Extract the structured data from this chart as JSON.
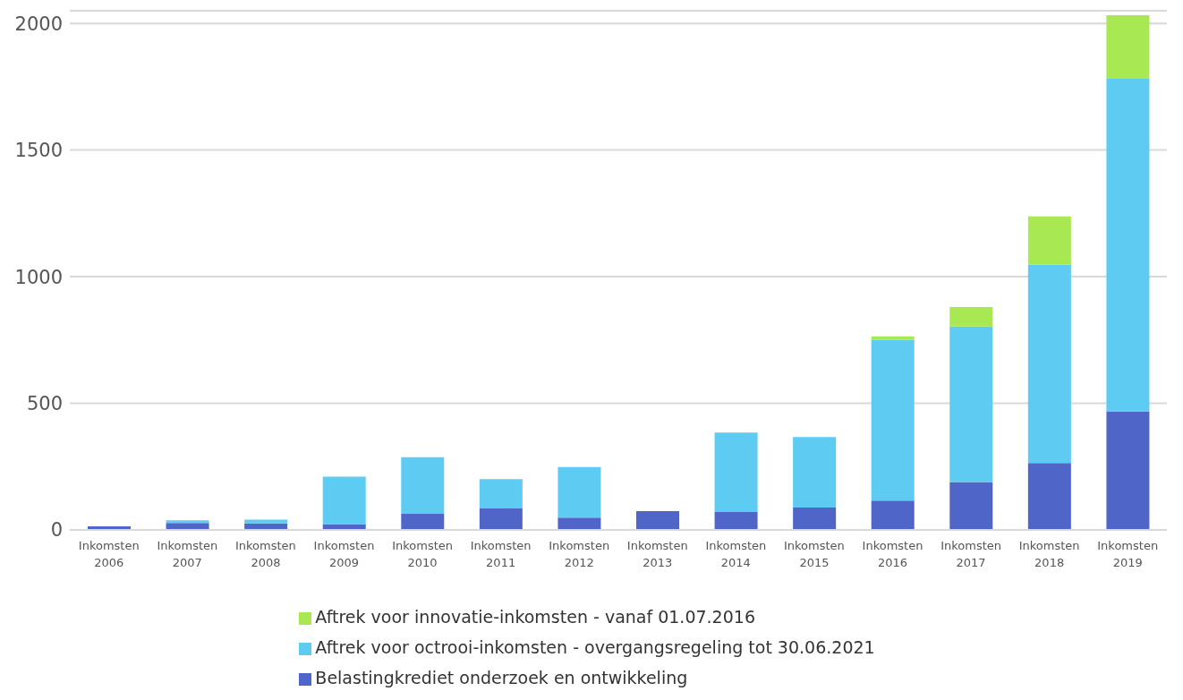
{
  "chart_data": {
    "type": "bar",
    "stacked": true,
    "categories": [
      "Inkomsten 2006",
      "Inkomsten 2007",
      "Inkomsten 2008",
      "Inkomsten 2009",
      "Inkomsten 2010",
      "Inkomsten 2011",
      "Inkomsten 2012",
      "Inkomsten 2013",
      "Inkomsten 2014",
      "Inkomsten 2015",
      "Inkomsten 2016",
      "Inkomsten 2017",
      "Inkomsten 2018",
      "Inkomsten 2019"
    ],
    "series": [
      {
        "name": "Belastingkrediet onderzoek en ontwikkeling",
        "color": "#4f66c8",
        "values": [
          14,
          27,
          26,
          23,
          64,
          85,
          49,
          74,
          71,
          88,
          116,
          189,
          264,
          468
        ]
      },
      {
        "name": "Aftrek voor octrooi-inkomsten - overgangsregeling tot 30.06.2021",
        "color": "#5ecbf2",
        "values": [
          null,
          11,
          15,
          187,
          223,
          116,
          199,
          null,
          313,
          279,
          634,
          614,
          784,
          1313
        ]
      },
      {
        "name": "Aftrek voor innovatie-inkomsten - vanaf 01.07.2016",
        "color": "#a8e853",
        "values": [
          null,
          null,
          null,
          null,
          null,
          null,
          null,
          null,
          null,
          null,
          14,
          77,
          190,
          251
        ]
      }
    ],
    "ylim": [
      0,
      2050
    ],
    "yticks": [
      0,
      500,
      1000,
      1500,
      2000
    ],
    "grid": "y",
    "legend": "bottom"
  }
}
